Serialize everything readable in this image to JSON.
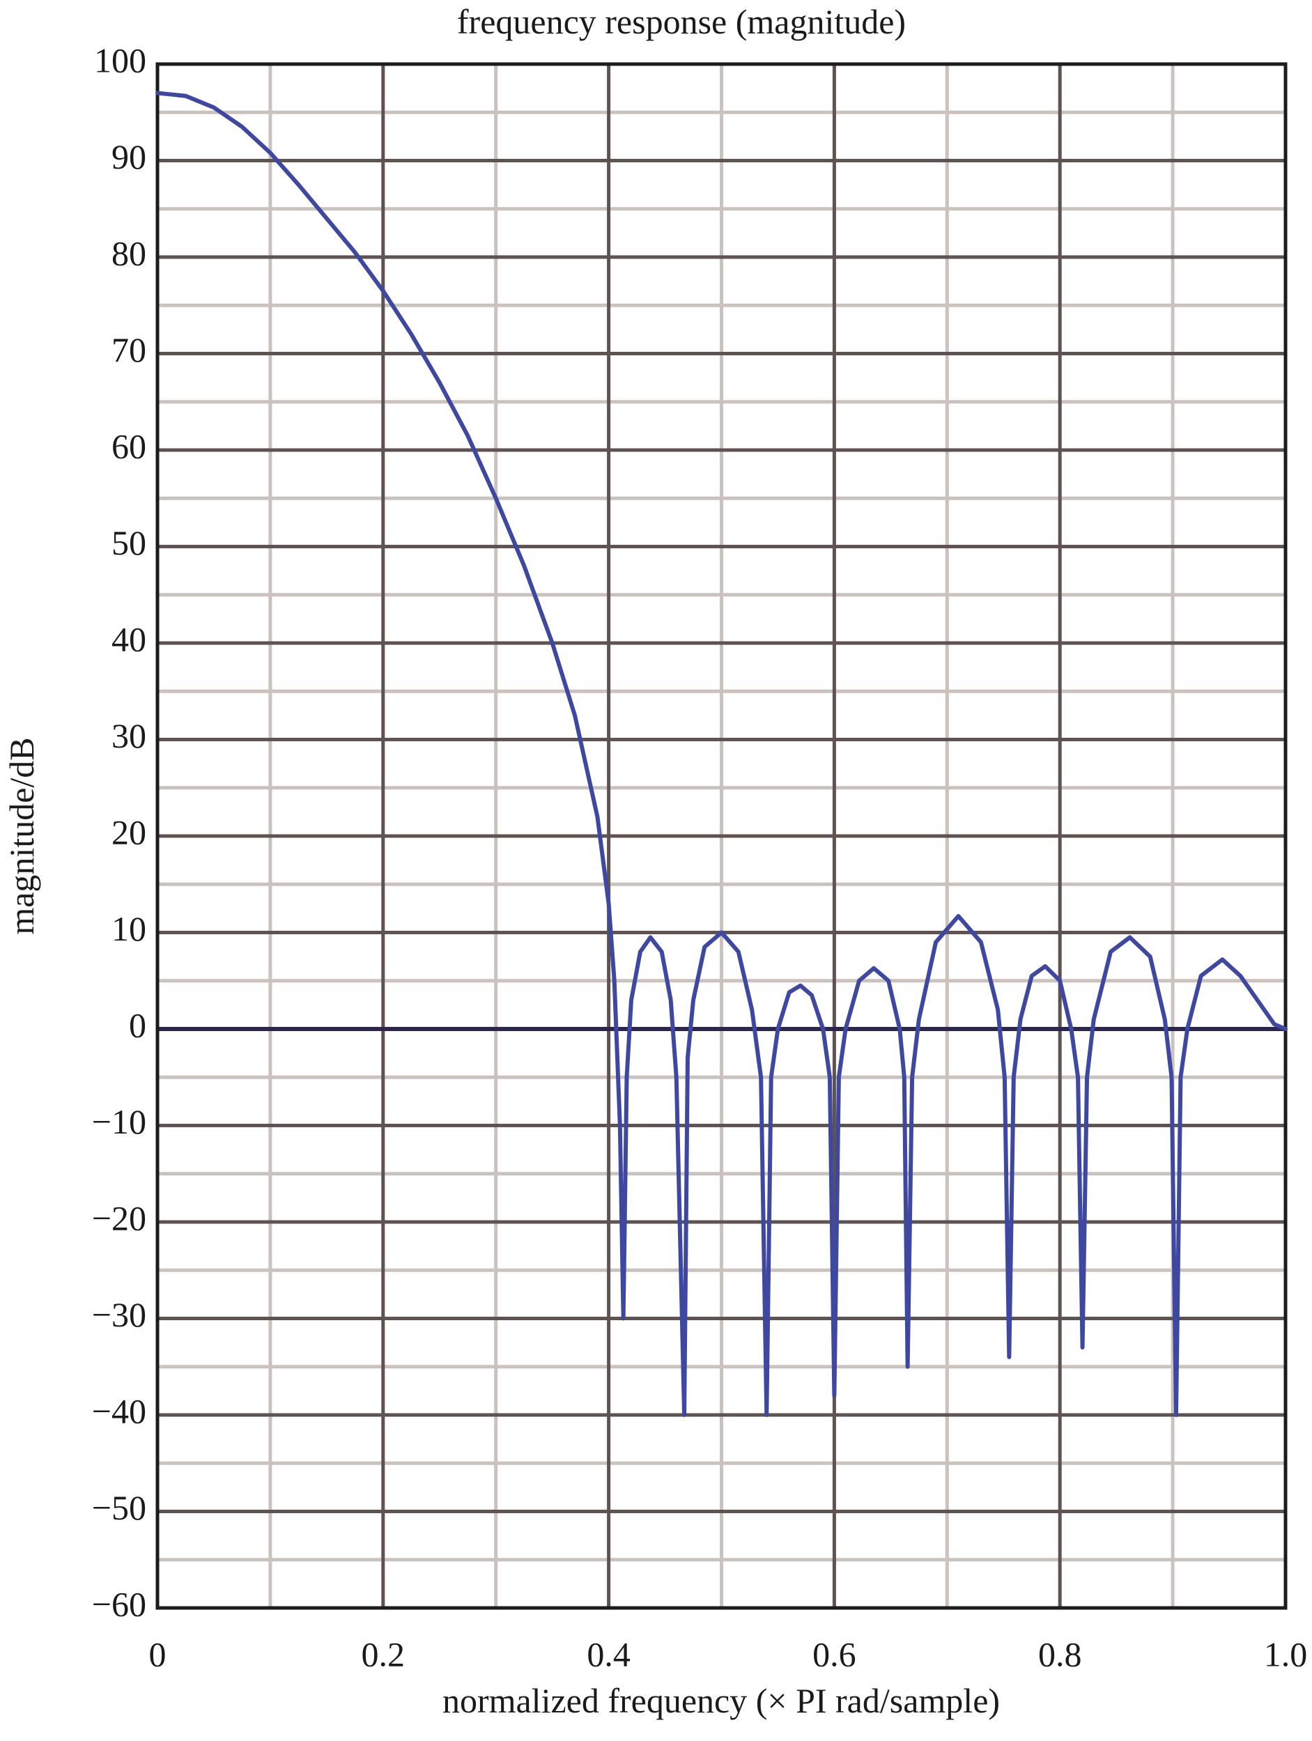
{
  "chart_data": {
    "type": "line",
    "title": "frequency response (magnitude)",
    "x_label": "normalized frequency (× PI rad/sample)",
    "y_label": "magnitude/dB",
    "x": [
      0,
      0.025,
      0.05,
      0.075,
      0.1,
      0.125,
      0.15,
      0.175,
      0.2,
      0.225,
      0.25,
      0.275,
      0.3,
      0.325,
      0.35,
      0.37,
      0.39,
      0.4,
      0.405,
      0.41,
      0.413,
      0.416,
      0.42,
      0.428,
      0.437,
      0.447,
      0.455,
      0.46,
      0.467,
      0.47,
      0.475,
      0.485,
      0.5,
      0.515,
      0.527,
      0.535,
      0.54,
      0.544,
      0.55,
      0.56,
      0.57,
      0.58,
      0.59,
      0.596,
      0.6,
      0.604,
      0.61,
      0.622,
      0.635,
      0.648,
      0.658,
      0.662,
      0.665,
      0.669,
      0.675,
      0.69,
      0.71,
      0.73,
      0.745,
      0.751,
      0.755,
      0.759,
      0.765,
      0.775,
      0.787,
      0.8,
      0.81,
      0.816,
      0.82,
      0.824,
      0.83,
      0.845,
      0.862,
      0.88,
      0.893,
      0.899,
      0.903,
      0.907,
      0.913,
      0.925,
      0.944,
      0.96,
      0.975,
      0.99,
      1.0
    ],
    "values": [
      97,
      96.7,
      95.5,
      93.5,
      90.8,
      87.5,
      84,
      80.5,
      76.5,
      72,
      67,
      61.5,
      55,
      48,
      40,
      32.5,
      22,
      13,
      5,
      -10,
      -30,
      -5,
      3,
      8,
      9.5,
      8,
      3,
      -5,
      -40,
      -3,
      3,
      8.5,
      10,
      8,
      2,
      -5,
      -40,
      -5,
      0,
      3.8,
      4.5,
      3.5,
      0,
      -5,
      -38,
      -5,
      0,
      5,
      6.3,
      5,
      0,
      -5,
      -35,
      -5,
      1,
      9,
      11.7,
      9,
      2,
      -5,
      -34,
      -5,
      1,
      5.5,
      6.5,
      5,
      0,
      -5,
      -33,
      -5,
      1,
      8,
      9.5,
      7.5,
      1,
      -5,
      -40,
      -5,
      0,
      5.5,
      7.2,
      5.5,
      3,
      0.5,
      0
    ],
    "color": "#3f48a0",
    "xlim": [
      0,
      1
    ],
    "ylim": [
      -60,
      100
    ],
    "xticks": [
      0,
      0.2,
      0.4,
      0.6,
      0.8,
      {
        "value": 1,
        "label": "1.0"
      }
    ],
    "yticks": [
      100,
      90,
      80,
      70,
      60,
      50,
      40,
      30,
      20,
      10,
      0,
      {
        "value": -10,
        "label": "−10"
      },
      {
        "value": -20,
        "label": "−20"
      },
      {
        "value": -30,
        "label": "−30"
      },
      {
        "value": -40,
        "label": "−40"
      },
      {
        "value": -50,
        "label": "−50"
      },
      {
        "value": -60,
        "label": "−60"
      }
    ],
    "xminorticks": [
      0.1,
      0.3,
      0.5,
      0.7,
      0.9
    ],
    "yminorticks": [
      95,
      85,
      75,
      65,
      55,
      45,
      35,
      25,
      15,
      5,
      -5,
      -15,
      -25,
      -35,
      -45,
      -55
    ],
    "grid": true
  }
}
